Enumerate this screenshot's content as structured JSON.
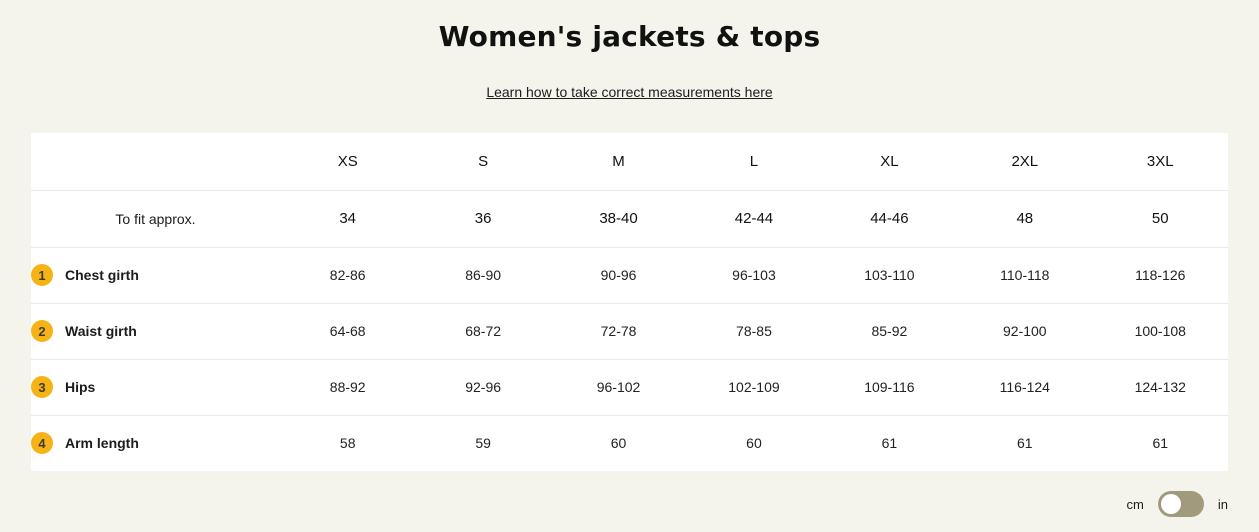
{
  "page": {
    "title": "Women's jackets & tops",
    "link_text": "Learn how to take correct measurements here"
  },
  "table": {
    "size_headers": [
      "XS",
      "S",
      "M",
      "L",
      "XL",
      "2XL",
      "3XL"
    ],
    "fit_row": {
      "label": "To fit approx.",
      "values": [
        "34",
        "36",
        "38-40",
        "42-44",
        "44-46",
        "48",
        "50"
      ]
    },
    "rows": [
      {
        "num": "1",
        "label": "Chest girth",
        "values": [
          "82-86",
          "86-90",
          "90-96",
          "96-103",
          "103-110",
          "110-118",
          "118-126"
        ]
      },
      {
        "num": "2",
        "label": "Waist girth",
        "values": [
          "64-68",
          "68-72",
          "72-78",
          "78-85",
          "85-92",
          "92-100",
          "100-108"
        ]
      },
      {
        "num": "3",
        "label": "Hips",
        "values": [
          "88-92",
          "92-96",
          "96-102",
          "102-109",
          "109-116",
          "116-124",
          "124-132"
        ]
      },
      {
        "num": "4",
        "label": "Arm length",
        "values": [
          "58",
          "59",
          "60",
          "60",
          "61",
          "61",
          "61"
        ]
      }
    ]
  },
  "unit_toggle": {
    "left_label": "cm",
    "right_label": "in",
    "selected": "cm"
  },
  "colors": {
    "page_background": "#F4F4ED",
    "card_background": "#FFFFFF",
    "divider": "#ECE9DF",
    "badge": "#F5B316",
    "toggle": "#A29A7D"
  }
}
